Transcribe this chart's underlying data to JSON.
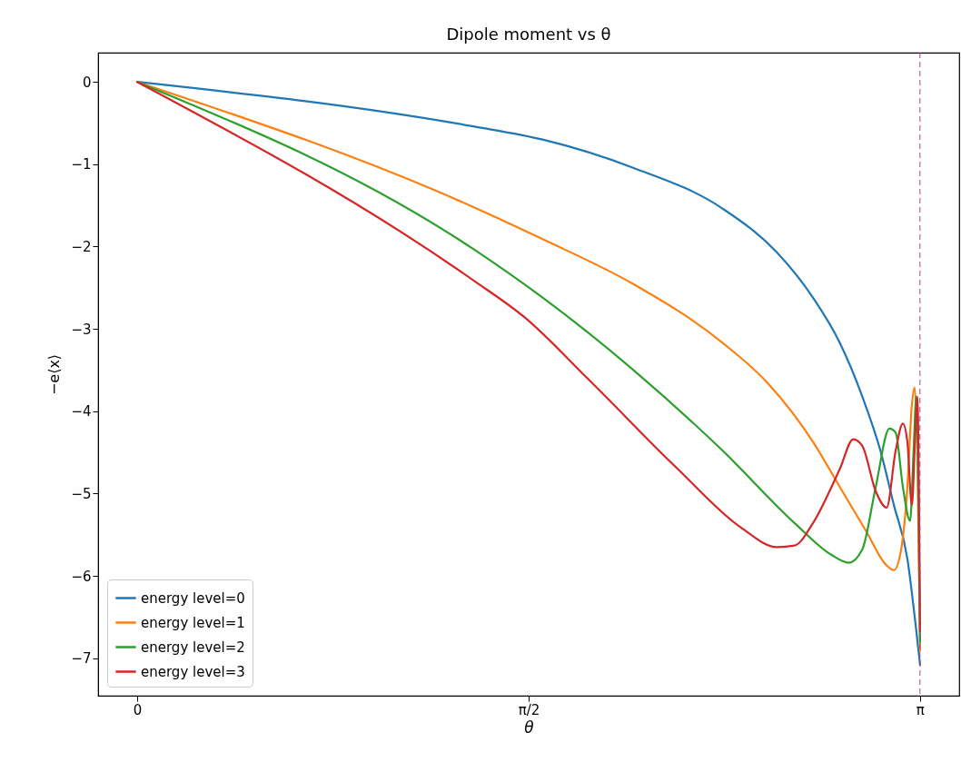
{
  "chart_data": {
    "type": "line",
    "title": "Dipole moment vs θ",
    "xlabel": "θ",
    "ylabel": "−e⟨x⟩",
    "xlim": [
      -0.157,
      3.299
    ],
    "ylim": [
      -7.455,
      0.355
    ],
    "xticks": [
      0,
      {
        "value": 1.5708,
        "label": "π/2"
      },
      {
        "value": 3.1416,
        "label": "π"
      }
    ],
    "yticks": [
      {
        "value": -7,
        "label": "−7"
      },
      {
        "value": -6,
        "label": "−6"
      },
      {
        "value": -5,
        "label": "−5"
      },
      {
        "value": -4,
        "label": "−4"
      },
      {
        "value": -3,
        "label": "−3"
      },
      {
        "value": -2,
        "label": "−2"
      },
      {
        "value": -1,
        "label": "−1"
      },
      0
    ],
    "grid": false,
    "legend": "bottom left",
    "line_style": "solid",
    "ref_lines": [
      {
        "axis": "x",
        "value": 3.1416,
        "color": "#a040a0",
        "line_style": "dashed"
      }
    ],
    "series": [
      {
        "name": "energy level=0",
        "color": "#1f77b4",
        "x": [
          0,
          1.349,
          1.627,
          1.988,
          2.35,
          2.567,
          2.712,
          2.82,
          2.91,
          2.983,
          3.037,
          3.091,
          3.127,
          3.142
        ],
        "values": [
          0,
          -0.54,
          -0.7,
          -1.04,
          -1.54,
          -2.07,
          -2.62,
          -3.17,
          -3.82,
          -4.48,
          -5.14,
          -5.79,
          -6.67,
          -7.08
        ]
      },
      {
        "name": "energy level=1",
        "color": "#ff7f0e",
        "x": [
          0,
          1.349,
          1.627,
          1.988,
          2.35,
          2.531,
          2.712,
          2.82,
          2.928,
          3.001,
          3.037,
          3.066,
          3.091,
          3.109,
          3.12,
          3.131,
          3.142
        ],
        "values": [
          0,
          -1.52,
          -1.91,
          -2.45,
          -3.17,
          -3.66,
          -4.37,
          -4.92,
          -5.47,
          -5.85,
          -5.93,
          -5.68,
          -4.92,
          -3.93,
          -3.71,
          -4.48,
          -6.91
        ]
      },
      {
        "name": "energy level=2",
        "color": "#2ca02c",
        "x": [
          0,
          1.349,
          1.627,
          1.988,
          2.35,
          2.639,
          2.784,
          2.856,
          2.91,
          2.964,
          3.019,
          3.044,
          3.073,
          3.102,
          3.116,
          3.127,
          3.134,
          3.142
        ],
        "values": [
          0,
          -2.03,
          -2.62,
          -3.49,
          -4.48,
          -5.36,
          -5.74,
          -5.84,
          -5.68,
          -4.92,
          -4.21,
          -4.26,
          -4.92,
          -5.33,
          -4.48,
          -3.82,
          -4.7,
          -6.8
        ]
      },
      {
        "name": "energy level=3",
        "color": "#d62728",
        "x": [
          0,
          1.349,
          1.555,
          1.807,
          2.169,
          2.422,
          2.567,
          2.639,
          2.712,
          2.82,
          2.874,
          2.91,
          2.964,
          3.008,
          3.044,
          3.073,
          3.091,
          3.109,
          3.123,
          3.131,
          3.142
        ],
        "values": [
          0,
          -2.41,
          -2.86,
          -3.6,
          -4.7,
          -5.41,
          -5.65,
          -5.63,
          -5.36,
          -4.7,
          -4.34,
          -4.42,
          -4.97,
          -5.17,
          -4.48,
          -4.15,
          -4.37,
          -5.14,
          -4.26,
          -3.82,
          -6.67
        ]
      }
    ]
  }
}
